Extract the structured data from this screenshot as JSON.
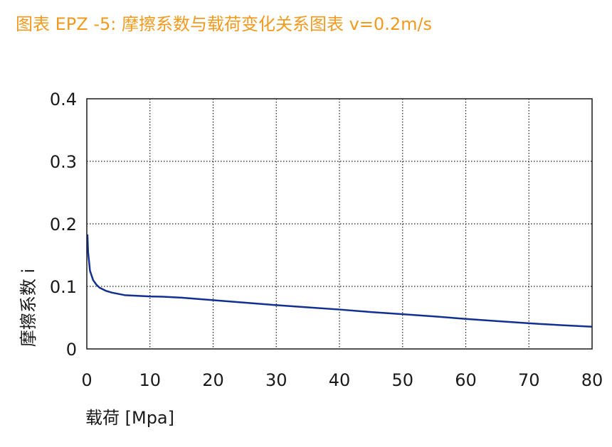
{
  "title": "图表  EPZ -5: 摩擦系数与载荷变化关系图表 v=0.2m/s",
  "colors": {
    "title": "#f39a1e",
    "line": "#12308f",
    "axes": "#1a1a1a",
    "grid": "#1a1a1a"
  },
  "chart_data": {
    "type": "line",
    "title": "图表  EPZ -5: 摩擦系数与载荷变化关系图表 v=0.2m/s",
    "xlabel": "载荷  [Mpa]",
    "ylabel": "摩擦系数 i",
    "xlim": [
      0,
      80
    ],
    "ylim": [
      0,
      0.4
    ],
    "x_ticks": [
      "0",
      "10",
      "20",
      "30",
      "40",
      "50",
      "60",
      "70",
      "80"
    ],
    "y_ticks": [
      "0",
      "0.1",
      "0.2",
      "0.3",
      "0.4"
    ],
    "grid": true,
    "grid_style": "dotted",
    "series": [
      {
        "x": [
          0.1,
          0.2,
          0.5,
          1,
          1.5,
          2,
          3,
          4,
          5,
          6,
          8,
          10,
          12,
          15,
          20,
          25,
          30,
          35,
          40,
          45,
          50,
          55,
          60,
          65,
          70,
          75,
          80
        ],
        "y": [
          0.183,
          0.155,
          0.125,
          0.11,
          0.103,
          0.098,
          0.093,
          0.09,
          0.088,
          0.086,
          0.085,
          0.084,
          0.0835,
          0.082,
          0.078,
          0.074,
          0.07,
          0.0665,
          0.063,
          0.059,
          0.0555,
          0.052,
          0.048,
          0.0445,
          0.041,
          0.038,
          0.0355
        ]
      }
    ]
  }
}
